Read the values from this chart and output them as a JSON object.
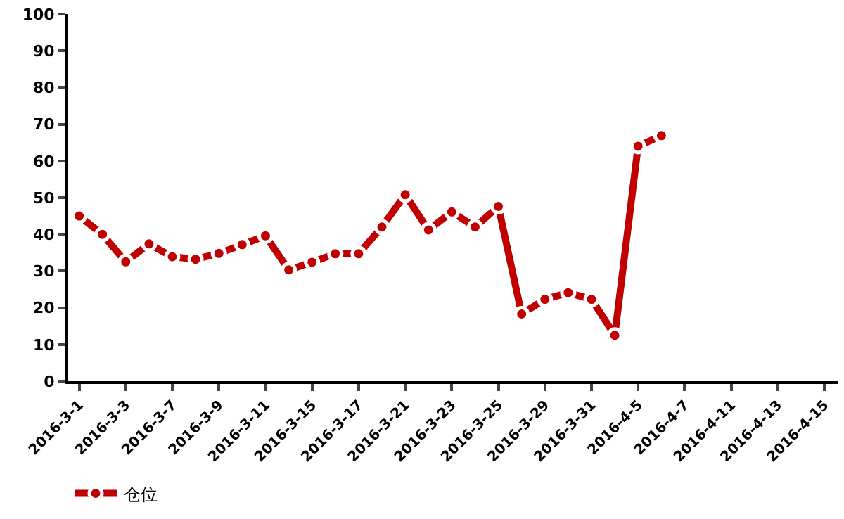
{
  "chart_data": {
    "type": "line",
    "categories": [
      "2016-3-1",
      null,
      "2016-3-3",
      null,
      "2016-3-7",
      null,
      "2016-3-9",
      null,
      "2016-3-11",
      null,
      "2016-3-15",
      null,
      "2016-3-17",
      null,
      "2016-3-21",
      null,
      "2016-3-23",
      null,
      "2016-3-25",
      null,
      "2016-3-29",
      null,
      "2016-3-31",
      null,
      "2016-4-5",
      null,
      "2016-4-7",
      null,
      "2016-4-11",
      null,
      "2016-4-13",
      null,
      "2016-4-15"
    ],
    "series": [
      {
        "name": "仓位",
        "color": "#c00000",
        "values": [
          45,
          40,
          32.5,
          37.4,
          33.9,
          33.2,
          34.8,
          37.2,
          39.6,
          30.3,
          32.4,
          34.7,
          34.7,
          42,
          50.8,
          41.2,
          46.1,
          42,
          47.6,
          18.3,
          22.3,
          24.1,
          22.3,
          12.5,
          64,
          66.9,
          null,
          null,
          null,
          null,
          null,
          null,
          null
        ]
      }
    ],
    "ylim": [
      0,
      100
    ],
    "yticks": [
      0,
      10,
      20,
      30,
      40,
      50,
      60,
      70,
      80,
      90,
      100
    ],
    "legend": "bottom left",
    "marker": "circle",
    "line_style": "solid"
  }
}
